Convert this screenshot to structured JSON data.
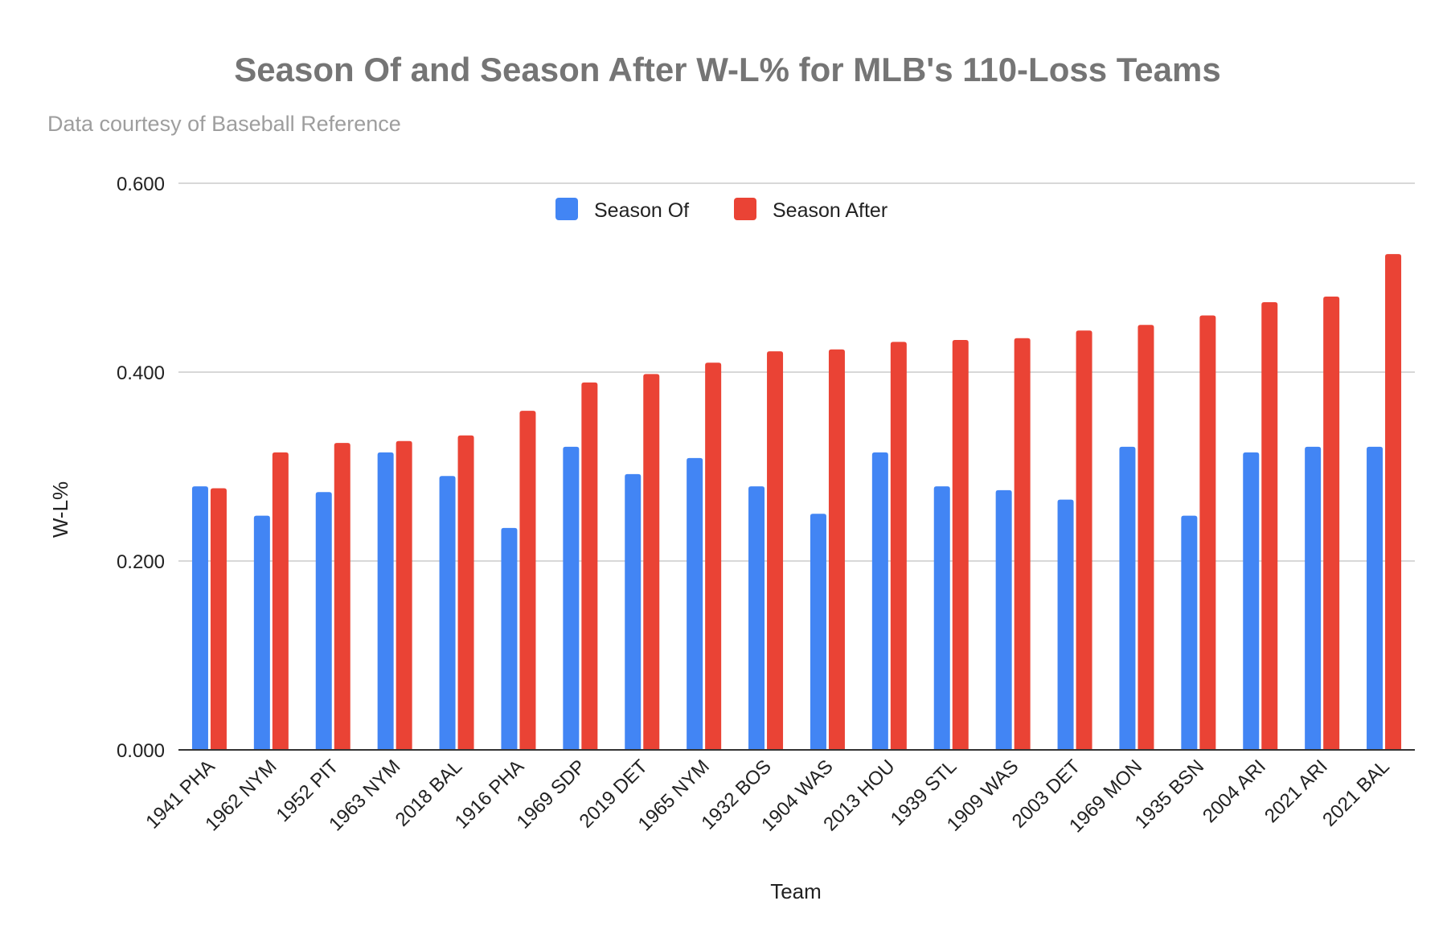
{
  "chart_data": {
    "type": "bar",
    "title": "Season Of and Season After W-L% for MLB's 110-Loss Teams",
    "subtitle": "Data courtesy of Baseball Reference",
    "xlabel": "Team",
    "ylabel": "W-L%",
    "ylim": [
      0,
      0.6
    ],
    "yticks": [
      "0.000",
      "0.200",
      "0.400",
      "0.600"
    ],
    "grid": true,
    "legend_position": "top",
    "categories": [
      "1941 PHA",
      "1962 NYM",
      "1952 PIT",
      "1963 NYM",
      "2018 BAL",
      "1916 PHA",
      "1969 SDP",
      "2019 DET",
      "1965 NYM",
      "1932 BOS",
      "1904 WAS",
      "2013 HOU",
      "1939 STL",
      "1909 WAS",
      "2003 DET",
      "1969 MON",
      "1935 BSN",
      "2004 ARI",
      "2021 ARI",
      "2021 BAL"
    ],
    "series": [
      {
        "name": "Season Of",
        "color": "#4285f4",
        "values": [
          0.279,
          0.248,
          0.273,
          0.315,
          0.29,
          0.235,
          0.321,
          0.292,
          0.309,
          0.279,
          0.25,
          0.315,
          0.279,
          0.275,
          0.265,
          0.321,
          0.248,
          0.315,
          0.321,
          0.321
        ]
      },
      {
        "name": "Season After",
        "color": "#ea4335",
        "values": [
          0.277,
          0.315,
          0.325,
          0.327,
          0.333,
          0.359,
          0.389,
          0.398,
          0.41,
          0.422,
          0.424,
          0.432,
          0.434,
          0.436,
          0.444,
          0.45,
          0.46,
          0.474,
          0.48,
          0.525
        ]
      }
    ]
  }
}
